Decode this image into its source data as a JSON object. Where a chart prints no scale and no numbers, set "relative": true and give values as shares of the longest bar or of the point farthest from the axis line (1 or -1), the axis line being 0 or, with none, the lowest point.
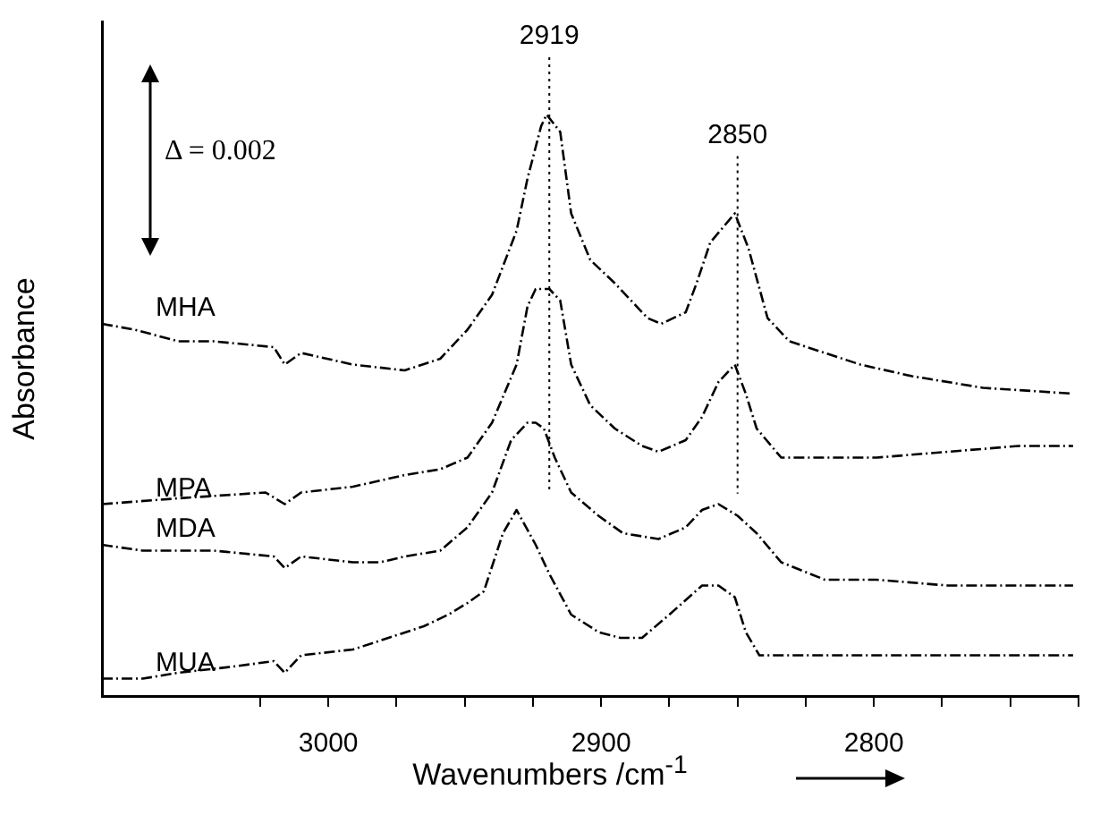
{
  "chart_data": {
    "type": "line",
    "relative": true,
    "xlabel": "Wavenumbers /cm$^{-1}$",
    "ylabel": "Absorbance",
    "xlim": [
      3083,
      2725
    ],
    "xticks": [
      {
        "value": 3025,
        "label": null
      },
      3000,
      {
        "value": 2975,
        "label": null
      },
      {
        "value": 2950,
        "label": null
      },
      {
        "value": 2925,
        "label": null
      },
      2900,
      {
        "value": 2875,
        "label": null
      },
      {
        "value": 2850,
        "label": null
      },
      {
        "value": 2825,
        "label": null
      },
      2800,
      {
        "value": 2775,
        "label": null
      },
      {
        "value": 2750,
        "label": null
      },
      {
        "value": 2725,
        "label": null
      }
    ],
    "grid": false,
    "legend": false,
    "marker": "none",
    "line_style": "dashed",
    "annotations": [
      "Δ = 0.002"
    ],
    "ref_lines": [
      {
        "axis": "x",
        "value": 2919,
        "label": "2919",
        "line_style": "dotted",
        "color": "#000000"
      },
      {
        "axis": "x",
        "value": 2850,
        "label": "2850",
        "line_style": "dotted",
        "color": "#000000"
      }
    ],
    "series": [
      {
        "name": "MHA",
        "color": "#000000",
        "x": [
          3083,
          3071,
          3055,
          3042,
          3020,
          3016,
          3010,
          2991,
          2972,
          2959,
          2949,
          2940,
          2931,
          2927,
          2922,
          2920,
          2915,
          2911,
          2904,
          2895,
          2883,
          2878,
          2869,
          2865,
          2860,
          2851,
          2846,
          2839,
          2831,
          2818,
          2805,
          2786,
          2760,
          2727
        ],
        "values": [
          0.64,
          0.63,
          0.61,
          0.61,
          0.6,
          0.57,
          0.59,
          0.57,
          0.56,
          0.58,
          0.63,
          0.69,
          0.8,
          0.89,
          0.98,
          1,
          0.97,
          0.83,
          0.75,
          0.71,
          0.65,
          0.64,
          0.66,
          0.71,
          0.78,
          0.83,
          0.77,
          0.65,
          0.61,
          0.59,
          0.57,
          0.55,
          0.53,
          0.52
        ]
      },
      {
        "name": "MPA",
        "color": "#000000",
        "x": [
          3083,
          3055,
          3023,
          3016,
          3010,
          2991,
          2972,
          2959,
          2949,
          2940,
          2931,
          2927,
          2924,
          2919,
          2915,
          2911,
          2904,
          2895,
          2885,
          2879,
          2869,
          2863,
          2857,
          2851,
          2847,
          2843,
          2834,
          2799,
          2773,
          2747,
          2727
        ],
        "values": [
          0.33,
          0.34,
          0.35,
          0.33,
          0.35,
          0.36,
          0.38,
          0.39,
          0.41,
          0.47,
          0.57,
          0.67,
          0.7,
          0.7,
          0.68,
          0.57,
          0.5,
          0.46,
          0.43,
          0.42,
          0.44,
          0.48,
          0.54,
          0.57,
          0.52,
          0.46,
          0.41,
          0.41,
          0.42,
          0.43,
          0.43
        ]
      },
      {
        "name": "MDA",
        "color": "#000000",
        "x": [
          3083,
          3068,
          3055,
          3042,
          3020,
          3016,
          3010,
          2991,
          2981,
          2972,
          2959,
          2949,
          2946,
          2940,
          2933,
          2927,
          2924,
          2921,
          2917,
          2911,
          2901,
          2892,
          2879,
          2869,
          2863,
          2857,
          2850,
          2843,
          2834,
          2818,
          2799,
          2773,
          2747,
          2727
        ],
        "values": [
          0.26,
          0.25,
          0.25,
          0.25,
          0.24,
          0.22,
          0.24,
          0.23,
          0.23,
          0.24,
          0.25,
          0.29,
          0.31,
          0.35,
          0.44,
          0.47,
          0.47,
          0.46,
          0.41,
          0.35,
          0.31,
          0.28,
          0.27,
          0.29,
          0.32,
          0.33,
          0.31,
          0.28,
          0.23,
          0.2,
          0.2,
          0.19,
          0.19,
          0.19
        ]
      },
      {
        "name": "MUA",
        "color": "#000000",
        "x": [
          3083,
          3068,
          3055,
          3036,
          3020,
          3016,
          3010,
          2991,
          2978,
          2965,
          2956,
          2949,
          2943,
          2936,
          2931,
          2924,
          2919,
          2911,
          2901,
          2893,
          2885,
          2875,
          2863,
          2857,
          2851,
          2847,
          2842,
          2831,
          2799,
          2766,
          2727
        ],
        "values": [
          0.03,
          0.03,
          0.04,
          0.05,
          0.06,
          0.04,
          0.07,
          0.08,
          0.1,
          0.12,
          0.14,
          0.16,
          0.18,
          0.28,
          0.32,
          0.26,
          0.21,
          0.14,
          0.11,
          0.1,
          0.1,
          0.14,
          0.19,
          0.19,
          0.17,
          0.11,
          0.07,
          0.07,
          0.07,
          0.07,
          0.07
        ]
      }
    ]
  }
}
